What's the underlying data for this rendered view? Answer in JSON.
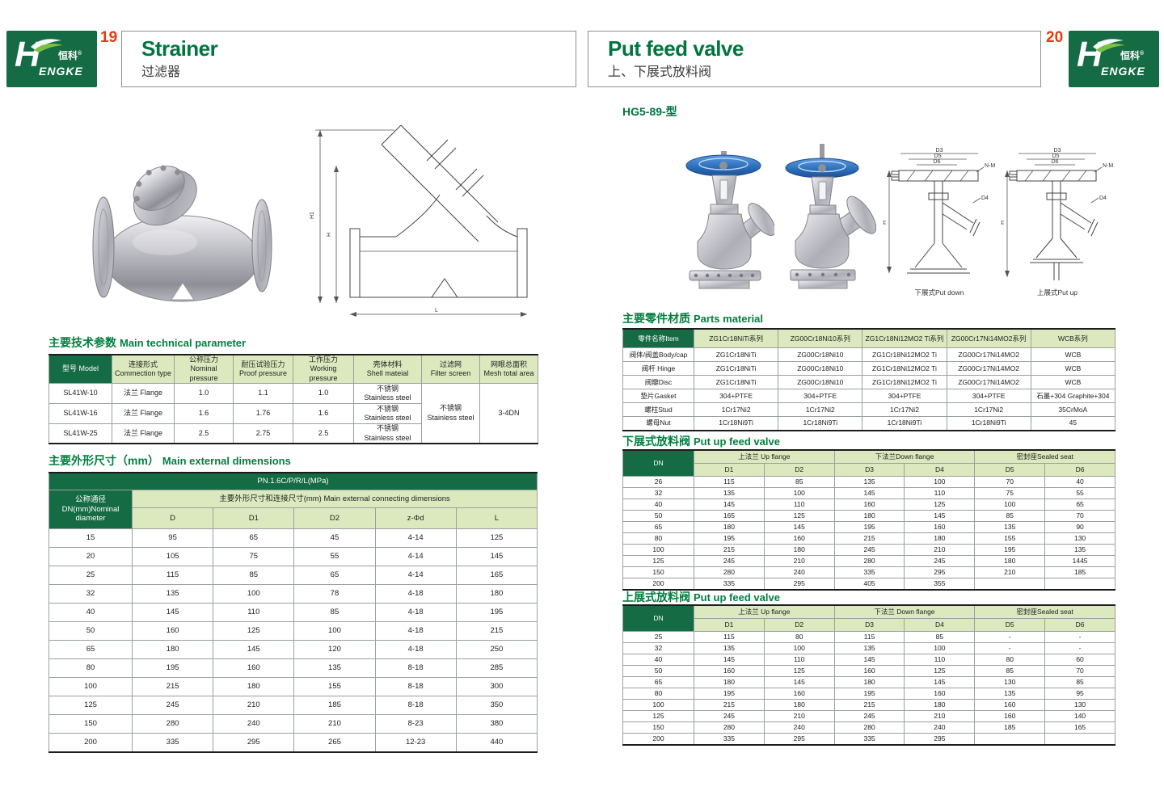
{
  "brand": {
    "initial": "H",
    "zh": "恒科",
    "reg": "®",
    "en": "ENGKE"
  },
  "left": {
    "page_number": "19",
    "title_en": "Strainer",
    "title_zh": "过滤器",
    "sec1_zh": "主要技术参数",
    "sec1_en": "Main technical parameter",
    "table1": {
      "headers": [
        "型号 Model",
        "连接形式\nCommection type",
        "公称压力\nNominal pressure",
        "耐压试验压力\nProof pressure",
        "工作压力\nWorking pressure",
        "壳体材料\nShell mateial",
        "过滤网\nFilter screen",
        "网眼总面积\nMesh total area"
      ],
      "rows": [
        [
          "SL41W-10",
          "法兰 Flange",
          "1.0",
          "1.1",
          "1.0",
          "不锈钢\nStainless steel"
        ],
        [
          "SL41W-16",
          "法兰 Flange",
          "1.6",
          "1.76",
          "1.6",
          "不锈钢\nStainless steel"
        ],
        [
          "SL41W-25",
          "法兰 Flange",
          "2.5",
          "2.75",
          "2.5",
          "不锈钢\nStainless steel"
        ]
      ],
      "filter": "不锈钢\nStainless steel",
      "mesh": "3-4DN"
    },
    "sec2_zh": "主要外形尺寸（mm）",
    "sec2_en": "Main external dimensions",
    "table2": {
      "pn": "PN.1.6C/P/R/L(MPa)",
      "col1": "公称通径\nDN(mm)Nominal\ndiameter",
      "span_header": "主要外形尺寸和连接尺寸(mm) Main external connecting dimensions",
      "subcols": [
        "D",
        "D1",
        "D2",
        "z-Φd",
        "L"
      ],
      "rows": [
        [
          "15",
          "95",
          "65",
          "45",
          "4-14",
          "125"
        ],
        [
          "20",
          "105",
          "75",
          "55",
          "4-14",
          "145"
        ],
        [
          "25",
          "115",
          "85",
          "65",
          "4-14",
          "165"
        ],
        [
          "32",
          "135",
          "100",
          "78",
          "4-18",
          "180"
        ],
        [
          "40",
          "145",
          "110",
          "85",
          "4-18",
          "195"
        ],
        [
          "50",
          "160",
          "125",
          "100",
          "4-18",
          "215"
        ],
        [
          "65",
          "180",
          "145",
          "120",
          "4-18",
          "250"
        ],
        [
          "80",
          "195",
          "160",
          "135",
          "8-18",
          "285"
        ],
        [
          "100",
          "215",
          "180",
          "155",
          "8-18",
          "300"
        ],
        [
          "125",
          "245",
          "210",
          "185",
          "8-18",
          "350"
        ],
        [
          "150",
          "280",
          "240",
          "210",
          "8-23",
          "380"
        ],
        [
          "200",
          "335",
          "295",
          "265",
          "12-23",
          "440"
        ]
      ]
    },
    "drawing_labels": {
      "h1": "H1",
      "h": "H",
      "l": "L"
    }
  },
  "right": {
    "page_number": "20",
    "title_en": "Put feed valve",
    "title_zh": "上、下展式放料阀",
    "model_code": "HG5-89-型",
    "captions": {
      "down": "下展式Put down",
      "up": "上展式Put up"
    },
    "dim": {
      "d3": "D3",
      "d5": "D5",
      "d6": "D6",
      "nm": "N-M",
      "d4": "D4",
      "h": "H"
    },
    "parts": {
      "title_zh": "主要零件材质",
      "title_en": "Parts material",
      "headers": [
        "零件名称Item",
        "ZG1Cr18NiTi系列",
        "ZG00Cr18Ni10系列",
        "ZG1Cr18Ni12MO2 Ti系列",
        "ZG00Cr17Ni14MO2系列",
        "WCB系列"
      ],
      "rows": [
        [
          "阀体/阀盖Body/cap",
          "ZG1Cr18NiTi",
          "ZG00Cr18Ni10",
          "ZG1Cr18Ni12MO2 Ti",
          "ZG00Cr17Ni14MO2",
          "WCB"
        ],
        [
          "阀杆 Hinge",
          "ZG1Cr18NiTi",
          "ZG00Cr18Ni10",
          "ZG1Cr18Ni12MO2 Ti",
          "ZG00Cr17Ni14MO2",
          "WCB"
        ],
        [
          "阀瓣Disc",
          "ZG1Cr18NiTi",
          "ZG00Cr18Ni10",
          "ZG1Cr18Ni12MO2 Ti",
          "ZG00Cr17Ni14MO2",
          "WCB"
        ],
        [
          "垫片Gasket",
          "304+PTFE",
          "304+PTFE",
          "304+PTFE",
          "304+PTFE",
          "石墨+304 Graphite+304"
        ],
        [
          "螺柱Stud",
          "1Cr17Ni2",
          "1Cr17Ni2",
          "1Cr17Ni2",
          "1Cr17Ni2",
          "35CrMoA"
        ],
        [
          "螺母Nut",
          "1Cr18Ni9Ti",
          "1Cr18Ni9Ti",
          "1Cr18Ni9Ti",
          "1Cr18Ni9Ti",
          "45"
        ]
      ]
    },
    "down_table": {
      "title_zh": "下展式放料阀",
      "title_en": "Put up feed valve",
      "dn": "DN",
      "groups": [
        "上法兰 Up flange",
        "下法兰Down flange",
        "密封座Sealed seat"
      ],
      "subcols": [
        "D1",
        "D2",
        "D3",
        "D4",
        "D5",
        "D6"
      ],
      "rows": [
        [
          "26",
          "115",
          "85",
          "135",
          "100",
          "70",
          "40"
        ],
        [
          "32",
          "135",
          "100",
          "145",
          "110",
          "75",
          "55"
        ],
        [
          "40",
          "145",
          "110",
          "160",
          "125",
          "100",
          "65"
        ],
        [
          "50",
          "165",
          "125",
          "180",
          "145",
          "85",
          "70"
        ],
        [
          "65",
          "180",
          "145",
          "195",
          "160",
          "135",
          "90"
        ],
        [
          "80",
          "195",
          "160",
          "215",
          "180",
          "155",
          "130"
        ],
        [
          "100",
          "215",
          "180",
          "245",
          "210",
          "195",
          "135"
        ],
        [
          "125",
          "245",
          "210",
          "280",
          "245",
          "180",
          "1445"
        ],
        [
          "150",
          "280",
          "240",
          "335",
          "295",
          "210",
          "185"
        ],
        [
          "200",
          "335",
          "295",
          "405",
          "355",
          "",
          ""
        ]
      ]
    },
    "up_table": {
      "title_zh": "上展式放料阀",
      "title_en": "Put up feed valve",
      "dn": "DN",
      "groups": [
        "上法兰 Up flange",
        "下法兰 Down flange",
        "密封座Sealed seat"
      ],
      "subcols": [
        "D1",
        "D2",
        "D3",
        "D4",
        "D5",
        "D6"
      ],
      "rows": [
        [
          "25",
          "115",
          "80",
          "115",
          "85",
          "-",
          "-"
        ],
        [
          "32",
          "135",
          "100",
          "135",
          "100",
          "-",
          "-"
        ],
        [
          "40",
          "145",
          "110",
          "145",
          "110",
          "80",
          "60"
        ],
        [
          "50",
          "160",
          "125",
          "160",
          "125",
          "85",
          "70"
        ],
        [
          "65",
          "180",
          "145",
          "180",
          "145",
          "130",
          "85"
        ],
        [
          "80",
          "195",
          "160",
          "195",
          "160",
          "135",
          "95"
        ],
        [
          "100",
          "215",
          "180",
          "215",
          "180",
          "160",
          "130"
        ],
        [
          "125",
          "245",
          "210",
          "245",
          "210",
          "160",
          "140"
        ],
        [
          "150",
          "280",
          "240",
          "280",
          "240",
          "185",
          "165"
        ],
        [
          "200",
          "335",
          "295",
          "335",
          "295",
          "",
          ""
        ]
      ]
    }
  }
}
